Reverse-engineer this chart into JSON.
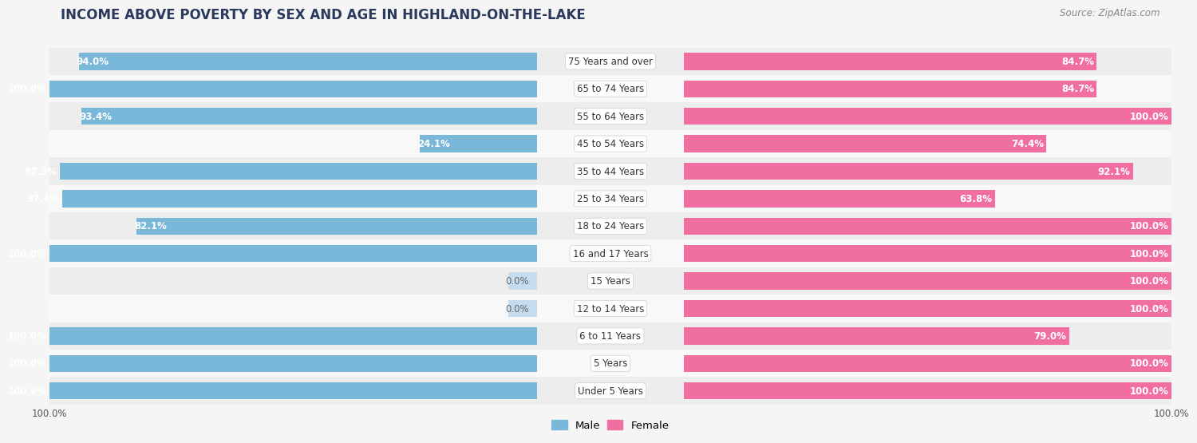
{
  "title": "INCOME ABOVE POVERTY BY SEX AND AGE IN HIGHLAND-ON-THE-LAKE",
  "source": "Source: ZipAtlas.com",
  "categories": [
    "Under 5 Years",
    "5 Years",
    "6 to 11 Years",
    "12 to 14 Years",
    "15 Years",
    "16 and 17 Years",
    "18 to 24 Years",
    "25 to 34 Years",
    "35 to 44 Years",
    "45 to 54 Years",
    "55 to 64 Years",
    "65 to 74 Years",
    "75 Years and over"
  ],
  "male": [
    100.0,
    100.0,
    100.0,
    0.0,
    0.0,
    100.0,
    82.1,
    97.4,
    97.9,
    24.1,
    93.4,
    100.0,
    94.0
  ],
  "female": [
    100.0,
    100.0,
    79.0,
    100.0,
    100.0,
    100.0,
    100.0,
    63.8,
    92.1,
    74.4,
    100.0,
    84.7,
    84.7
  ],
  "male_color": "#7ab8d9",
  "female_color": "#f06fa0",
  "male_light_color": "#c5dcee",
  "female_light_color": "#f8bdd0",
  "row_color_even": "#ededee",
  "row_color_odd": "#f8f8f8",
  "bg_color": "#f5f5f5",
  "bar_height": 0.62,
  "val_label_fontsize": 8.5,
  "cat_label_fontsize": 8.5,
  "title_fontsize": 12,
  "source_fontsize": 8.5
}
